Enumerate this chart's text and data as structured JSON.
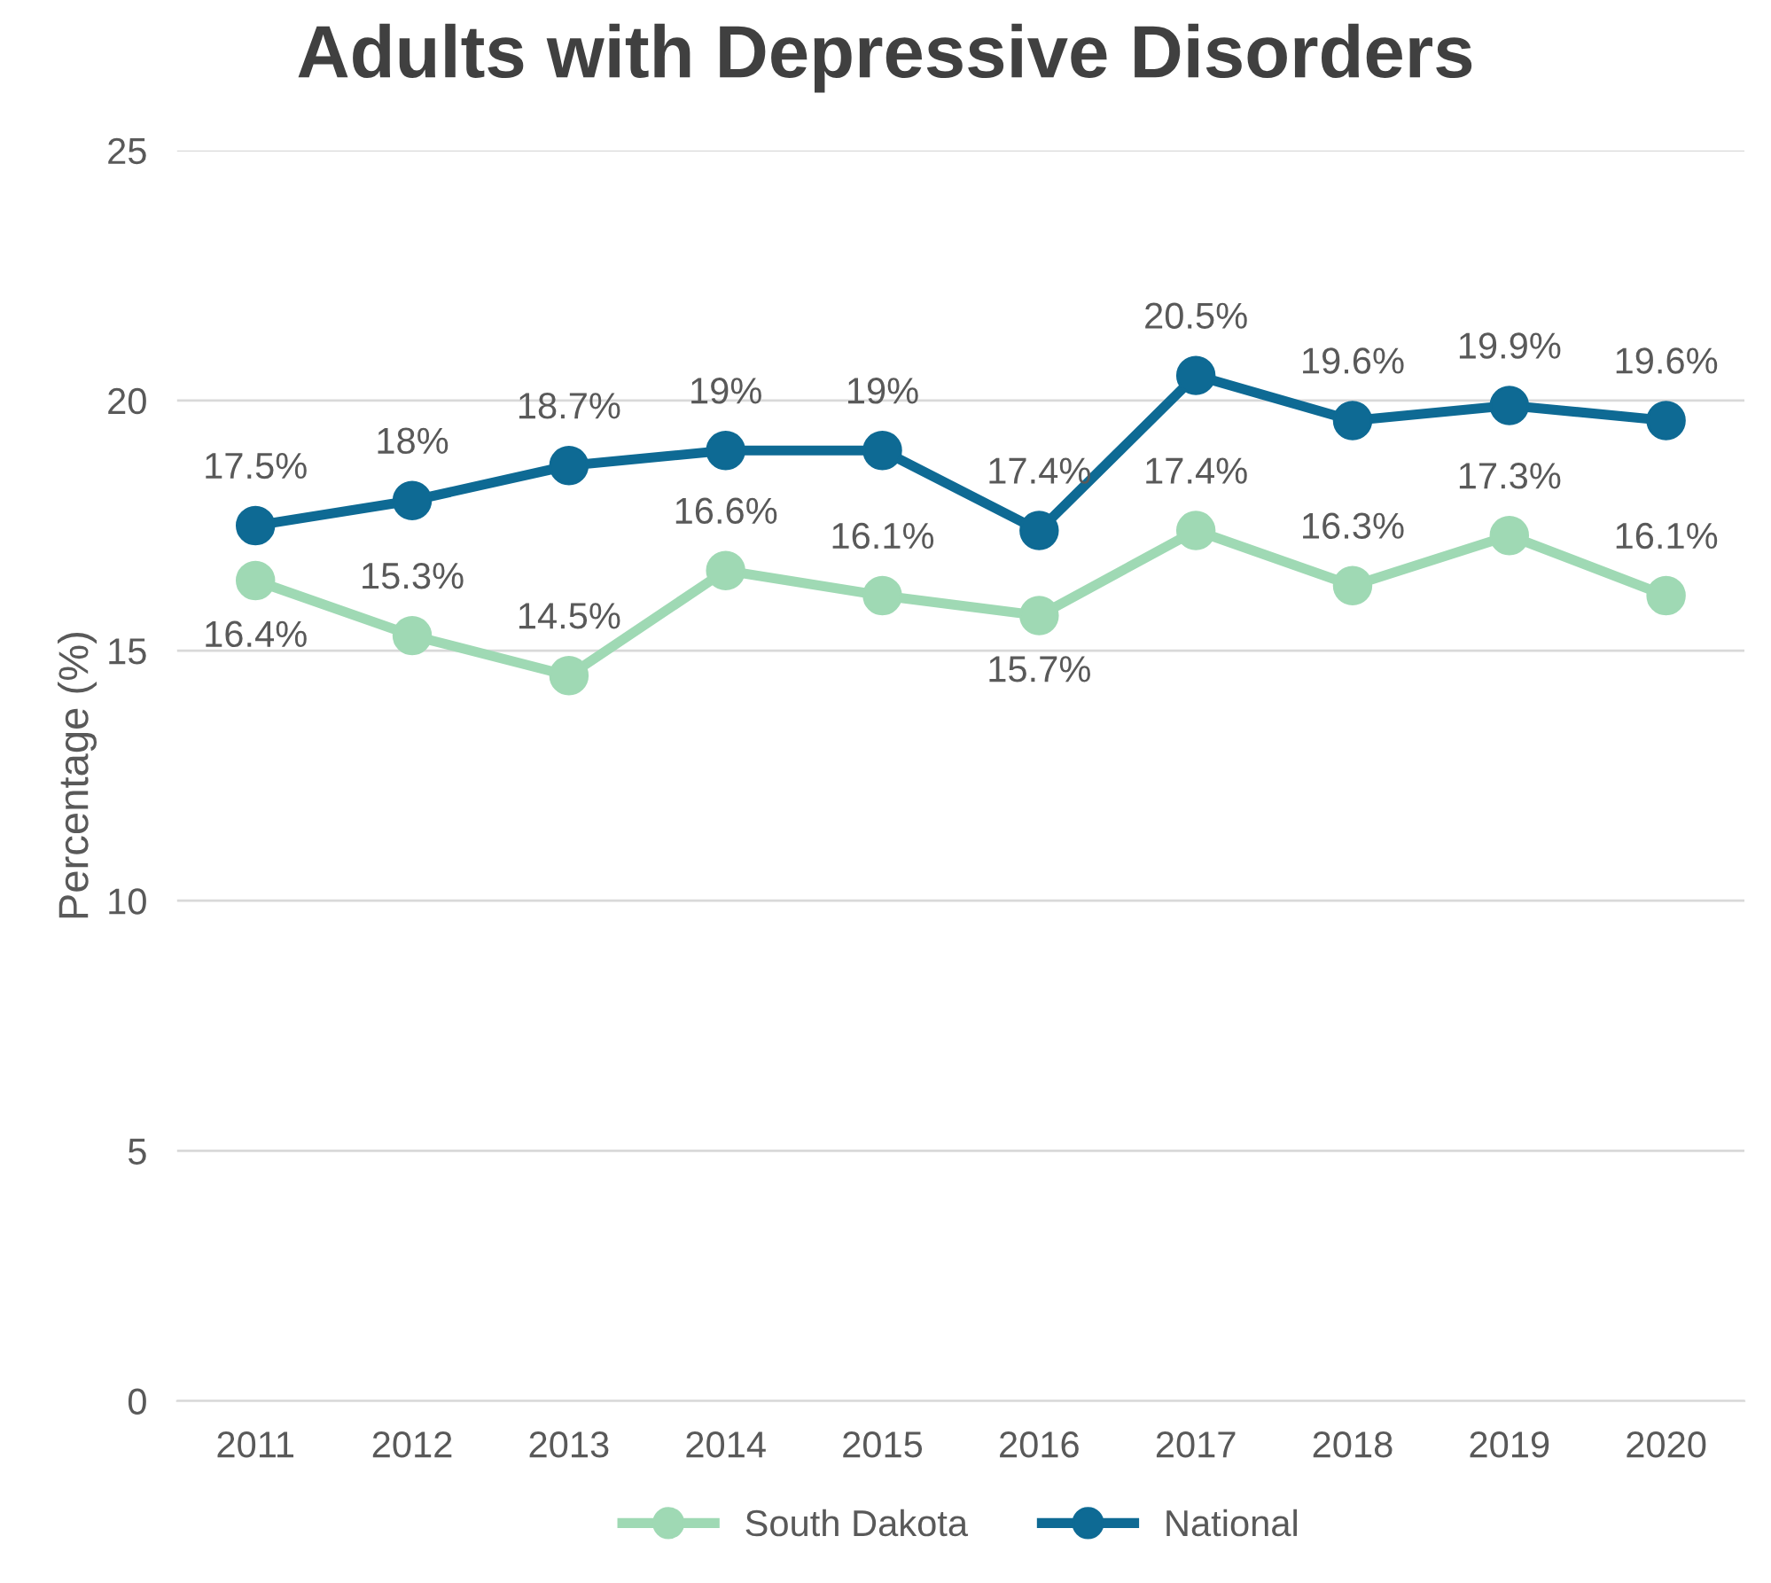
{
  "chart_data": {
    "type": "line",
    "title": "Adults with Depressive Disorders",
    "ylabel": "Percentage (%)",
    "categories": [
      "2011",
      "2012",
      "2013",
      "2014",
      "2015",
      "2016",
      "2017",
      "2018",
      "2019",
      "2020"
    ],
    "series": [
      {
        "name": "South Dakota",
        "color": "#9fd9b4",
        "values": [
          16.4,
          15.3,
          14.5,
          16.6,
          16.1,
          15.7,
          17.4,
          16.3,
          17.3,
          16.1
        ],
        "value_labels": [
          "16.4%",
          "15.3%",
          "14.5%",
          "16.6%",
          "16.1%",
          "15.7%",
          "17.4%",
          "16.3%",
          "17.3%",
          "16.1%"
        ]
      },
      {
        "name": "National",
        "color": "#0e6a94",
        "values": [
          17.5,
          18,
          18.7,
          19,
          19,
          17.4,
          20.5,
          19.6,
          19.9,
          19.6
        ],
        "value_labels": [
          "17.5%",
          "18%",
          "18.7%",
          "19%",
          "19%",
          "17.4%",
          "20.5%",
          "19.6%",
          "19.9%",
          "19.6%"
        ]
      }
    ],
    "ylim": [
      0,
      25
    ],
    "yticks": [
      0,
      5,
      10,
      15,
      20,
      25
    ],
    "grid": "y",
    "legend": "bottom",
    "marker": "circle",
    "line_style": "solid"
  }
}
